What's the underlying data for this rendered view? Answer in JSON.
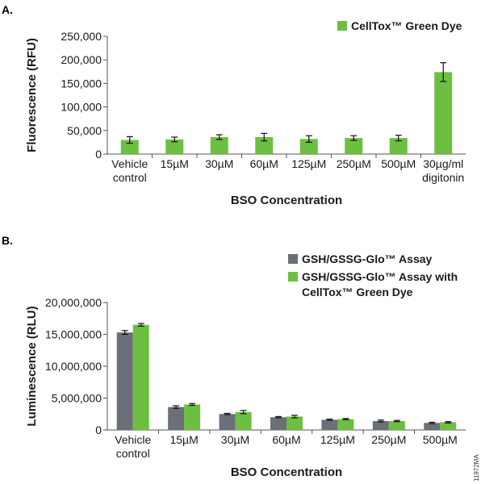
{
  "side_code": "11972MA",
  "chart_data": [
    {
      "panel": "A.",
      "type": "bar",
      "xlabel": "BSO Concentration",
      "ylabel": "Fluorescence (RFU)",
      "ylim": [
        0,
        250000
      ],
      "yticks": [
        "0",
        "50,000",
        "100,000",
        "150,000",
        "200,000",
        "250,000"
      ],
      "categories": [
        [
          "Vehicle",
          "control"
        ],
        [
          "15µM"
        ],
        [
          "30µM"
        ],
        [
          "60µM"
        ],
        [
          "125µM"
        ],
        [
          "250µM"
        ],
        [
          "500µM"
        ],
        [
          "30µg/ml",
          "digitonin"
        ]
      ],
      "series": [
        {
          "name": "CellTox™ Green Dye",
          "color": "#6cbf40",
          "values": [
            30000,
            31000,
            36000,
            36000,
            32000,
            34000,
            34000,
            174000
          ],
          "errors": [
            7000,
            5000,
            5000,
            8000,
            7000,
            5000,
            6000,
            20000
          ]
        }
      ],
      "legend_position": "top-right"
    },
    {
      "panel": "B.",
      "type": "bar",
      "xlabel": "BSO Concentration",
      "ylabel": "Luminescence (RLU)",
      "ylim": [
        0,
        20000000
      ],
      "yticks": [
        "0",
        "5,000,000",
        "10,000,000",
        "15,000,000",
        "20,000,000"
      ],
      "categories": [
        [
          "Vehicle",
          "control"
        ],
        [
          "15µM"
        ],
        [
          "30µM"
        ],
        [
          "60µM"
        ],
        [
          "125µM"
        ],
        [
          "250µM"
        ],
        [
          "500µM"
        ]
      ],
      "series": [
        {
          "name": "GSH/GSSG-Glo™ Assay",
          "color": "#6b6f78",
          "values": [
            15300000,
            3600000,
            2500000,
            2000000,
            1600000,
            1400000,
            1100000
          ],
          "errors": [
            300000,
            200000,
            100000,
            100000,
            100000,
            150000,
            100000
          ]
        },
        {
          "name": [
            "GSH/GSSG-Glo™ Assay with",
            "CellTox™ Green Dye"
          ],
          "color": "#6cbf40",
          "values": [
            16500000,
            4000000,
            2800000,
            2100000,
            1700000,
            1400000,
            1200000
          ],
          "errors": [
            200000,
            150000,
            250000,
            200000,
            100000,
            100000,
            100000
          ]
        }
      ],
      "legend_position": "top-right"
    }
  ]
}
